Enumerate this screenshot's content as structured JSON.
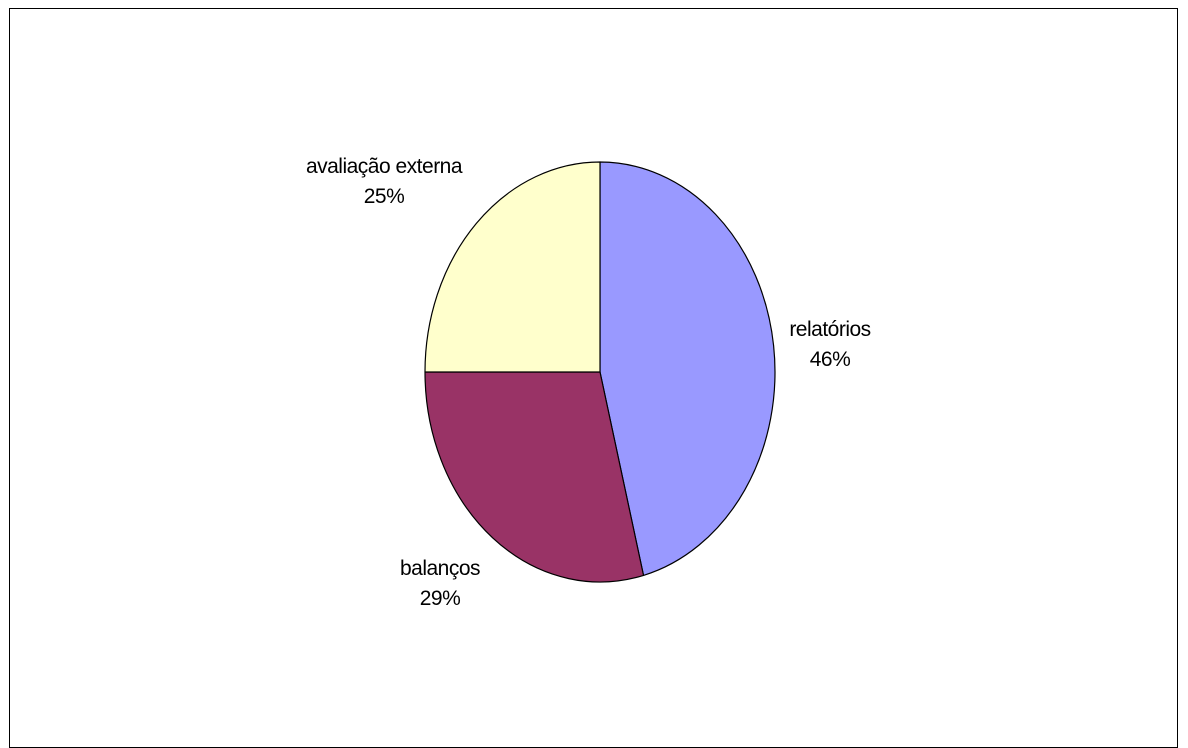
{
  "chart_data": {
    "type": "pie",
    "slices": [
      {
        "label": "relatórios",
        "value": 46,
        "value_label": "46%",
        "color": "#9999ff"
      },
      {
        "label": "balanços",
        "value": 29,
        "value_label": "29%",
        "color": "#993366"
      },
      {
        "label": "avaliação externa",
        "value": 25,
        "value_label": "25%",
        "color": "#ffffcc"
      }
    ],
    "start_angle_deg": 0,
    "direction": "clockwise",
    "outline_color": "#000000",
    "legend": "none"
  }
}
